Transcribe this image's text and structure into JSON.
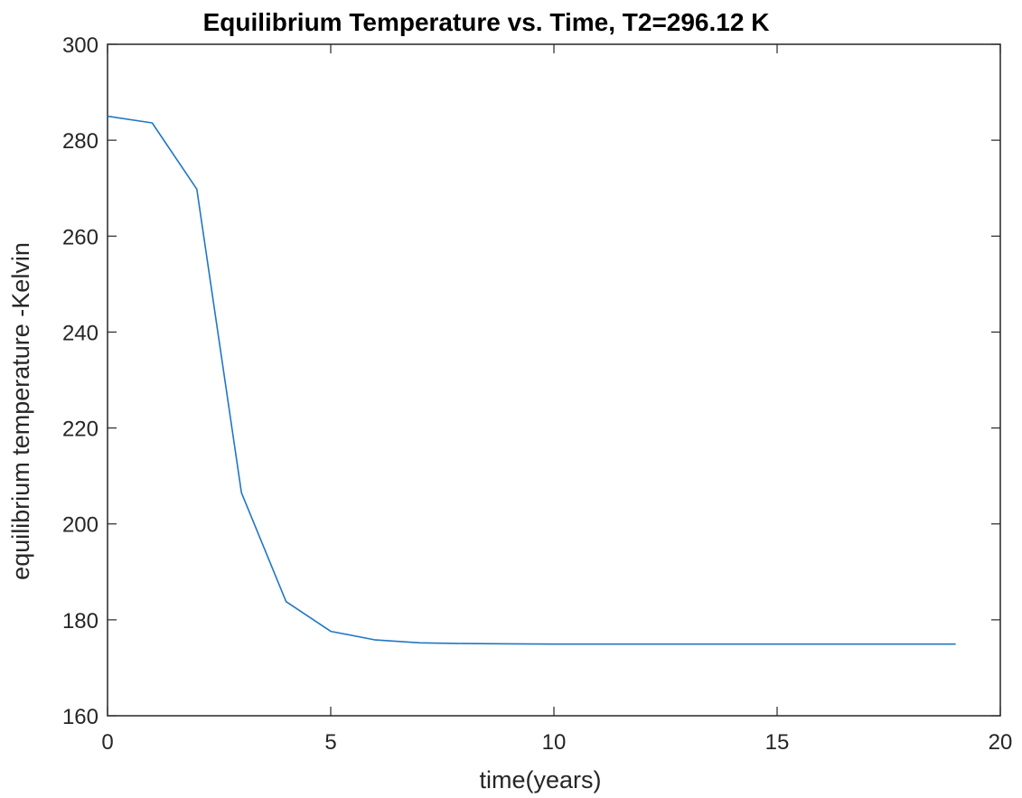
{
  "chart_data": {
    "type": "line",
    "title": "Equilibrium Temperature vs. Time, T2=296.12 K",
    "xlabel": "time(years)",
    "ylabel": "equilibrium temperature -Kelvin",
    "xlim": [
      0,
      20
    ],
    "ylim": [
      160,
      300
    ],
    "xticks": [
      0,
      5,
      10,
      15,
      20
    ],
    "yticks": [
      160,
      180,
      200,
      220,
      240,
      260,
      280,
      300
    ],
    "xtick_labels": [
      "0",
      "5",
      "10",
      "15",
      "20"
    ],
    "ytick_labels": [
      "160",
      "180",
      "200",
      "220",
      "240",
      "260",
      "280",
      "300"
    ],
    "grid": false,
    "series": [
      {
        "color": "#1f77c4",
        "x": [
          0,
          1,
          2,
          3,
          4,
          5,
          6,
          7,
          8,
          9,
          10,
          11,
          12,
          13,
          14,
          15,
          16,
          17,
          18,
          19
        ],
        "y": [
          285.0,
          283.6,
          269.8,
          206.5,
          183.8,
          177.6,
          175.8,
          175.2,
          175.05,
          175.0,
          174.95,
          174.95,
          174.95,
          174.95,
          174.95,
          174.95,
          174.95,
          174.95,
          174.95,
          174.95
        ]
      }
    ]
  }
}
